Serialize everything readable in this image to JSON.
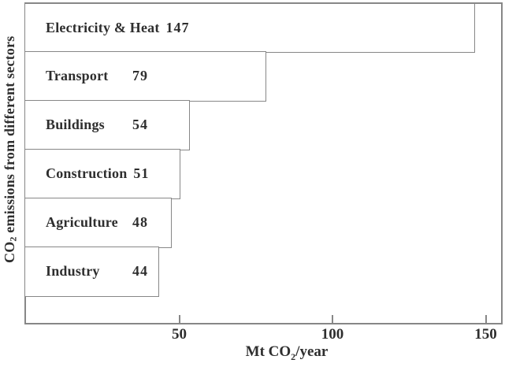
{
  "figure": {
    "background": "#ffffff",
    "frame_color": "#878787",
    "text_color": "#2e2e2e"
  },
  "chart_data": {
    "type": "bar",
    "orientation": "horizontal",
    "title": "",
    "categories": [
      "Electricity & Heat",
      "Transport",
      "Buildings",
      "Construction",
      "Agriculture",
      "Industry"
    ],
    "values": [
      147,
      79,
      54,
      51,
      48,
      44
    ],
    "xlabel": "Mt CO₂/year",
    "ylabel": "CO₂ emissions from different sectors",
    "x_ticks": [
      50,
      100,
      150
    ],
    "xlim": [
      0,
      155
    ],
    "grid": false,
    "legend": "none",
    "bar_fill": "#ffffff",
    "bar_border": "#878787",
    "value_labels_inside_bars": true
  },
  "labels": {
    "ylabel_pre": "CO",
    "ylabel_sub": "2",
    "ylabel_post": " emissions from different sectors",
    "xlabel_pre": "Mt CO",
    "xlabel_sub": "2",
    "xlabel_post": "/year"
  }
}
